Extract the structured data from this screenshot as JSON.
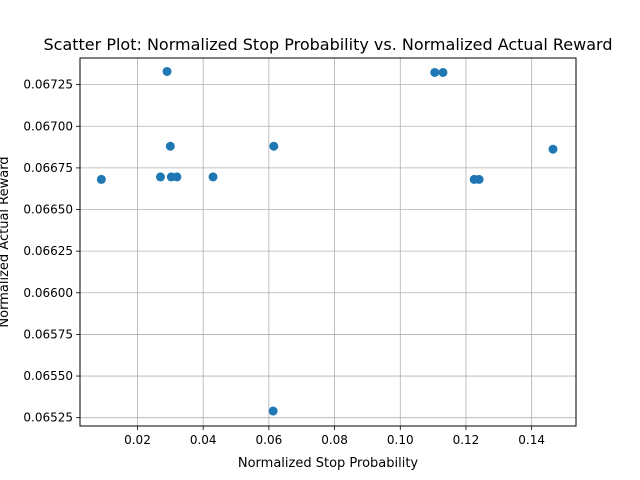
{
  "chart_data": {
    "type": "scatter",
    "title": "Scatter Plot: Normalized Stop Probability vs. Normalized Actual Reward",
    "xlabel": "Normalized Stop Probability",
    "ylabel": "Normalized Actual Reward",
    "xlim": [
      0.0025,
      0.1535
    ],
    "ylim": [
      0.0652,
      0.06741
    ],
    "grid": true,
    "marker_color": "#1f77b4",
    "x_ticks": [
      0.02,
      0.04,
      0.06,
      0.08,
      0.1,
      0.12,
      0.14
    ],
    "x_tick_labels": [
      "0.02",
      "0.04",
      "0.06",
      "0.08",
      "0.10",
      "0.12",
      "0.14"
    ],
    "y_ticks": [
      0.06525,
      0.0655,
      0.06575,
      0.066,
      0.06625,
      0.0665,
      0.06675,
      0.067,
      0.06725
    ],
    "y_tick_labels": [
      "0.06525",
      "0.06550",
      "0.06575",
      "0.06600",
      "0.06625",
      "0.06650",
      "0.06675",
      "0.06700",
      "0.06725"
    ],
    "points": [
      {
        "x": 0.009,
        "y": 0.066681
      },
      {
        "x": 0.027,
        "y": 0.066696
      },
      {
        "x": 0.029,
        "y": 0.067329
      },
      {
        "x": 0.03,
        "y": 0.06688
      },
      {
        "x": 0.0303,
        "y": 0.066696
      },
      {
        "x": 0.032,
        "y": 0.066696
      },
      {
        "x": 0.043,
        "y": 0.066696
      },
      {
        "x": 0.0613,
        "y": 0.06529
      },
      {
        "x": 0.0615,
        "y": 0.06688
      },
      {
        "x": 0.1105,
        "y": 0.067323
      },
      {
        "x": 0.113,
        "y": 0.067323
      },
      {
        "x": 0.1225,
        "y": 0.066681
      },
      {
        "x": 0.124,
        "y": 0.066681
      },
      {
        "x": 0.1465,
        "y": 0.066862
      }
    ]
  }
}
